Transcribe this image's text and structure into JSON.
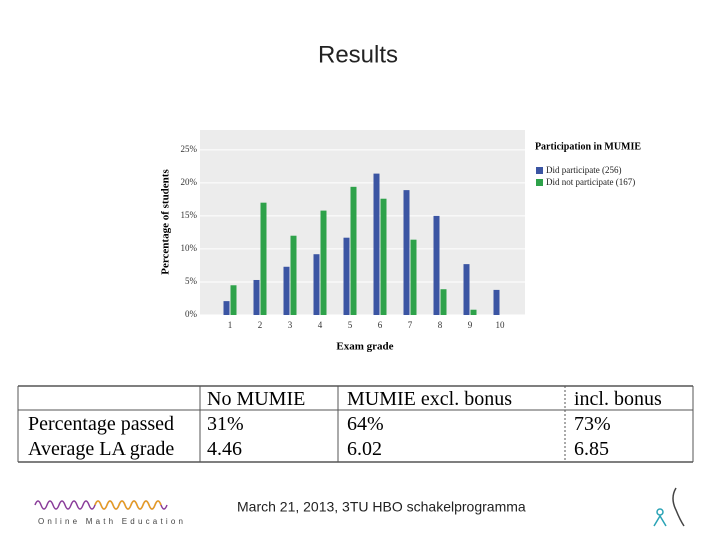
{
  "title": "Results",
  "chart_data": {
    "type": "bar",
    "y_label": "Percentage of students",
    "x_label": "Exam grade",
    "legend_title": "Participation in MUMIE",
    "categories": [
      "1",
      "2",
      "3",
      "4",
      "5",
      "6",
      "7",
      "8",
      "9",
      "10"
    ],
    "series": [
      {
        "name": "Did participate (256)",
        "color": "#3b55a3",
        "values": [
          2.1,
          5.3,
          7.3,
          9.2,
          11.7,
          21.4,
          18.9,
          15.0,
          7.7,
          3.8
        ]
      },
      {
        "name": "Did not participate (167)",
        "color": "#2ea24a",
        "values": [
          4.5,
          17.0,
          12.0,
          15.8,
          19.4,
          17.6,
          11.4,
          3.9,
          0.8,
          0
        ]
      }
    ],
    "ylim": [
      0,
      28
    ],
    "yticks": [
      {
        "value": 0,
        "label": "0%"
      },
      {
        "value": 5,
        "label": "5%"
      },
      {
        "value": 10,
        "label": "10%"
      },
      {
        "value": 15,
        "label": "15%"
      },
      {
        "value": 20,
        "label": "20%"
      },
      {
        "value": 25,
        "label": "25%"
      }
    ],
    "grid": true,
    "legend": "right"
  },
  "table": {
    "header": [
      "No MUMIE",
      "MUMIE excl. bonus",
      "incl. bonus"
    ],
    "rows": [
      [
        "Percentage passed",
        "31%",
        "64%",
        "73%"
      ],
      [
        "Average LA grade",
        "4.46",
        "6.02",
        "6.85"
      ]
    ]
  },
  "footer": {
    "text": "March 21, 2013, 3TU HBO schakelprogramma",
    "logo_text": "Online Math Education"
  }
}
